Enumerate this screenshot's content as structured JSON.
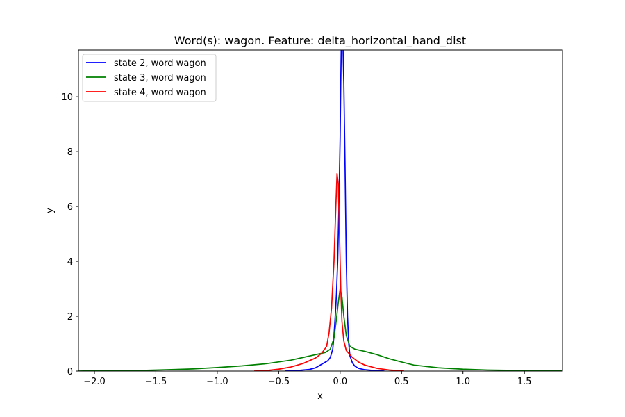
{
  "chart_data": {
    "type": "line",
    "title": "Word(s): wagon. Feature: delta_horizontal_hand_dist",
    "xlabel": "x",
    "ylabel": "y",
    "xlim": [
      -2.13,
      1.81
    ],
    "ylim": [
      0,
      11.7
    ],
    "xticks": [
      -2.0,
      -1.5,
      -1.0,
      -0.5,
      0.0,
      0.5,
      1.0,
      1.5
    ],
    "xtick_labels": [
      "−2.0",
      "−1.5",
      "−1.0",
      "−0.5",
      "0.0",
      "0.5",
      "1.0",
      "1.5"
    ],
    "yticks": [
      0,
      2,
      4,
      6,
      8,
      10
    ],
    "ytick_labels": [
      "0",
      "2",
      "4",
      "6",
      "8",
      "10"
    ],
    "grid": false,
    "legend_placement": "top-left",
    "series": [
      {
        "name": "state 2, word wagon",
        "color": "#0000ff",
        "points": [
          [
            -0.45,
            0.0
          ],
          [
            -0.35,
            0.02
          ],
          [
            -0.25,
            0.06
          ],
          [
            -0.2,
            0.12
          ],
          [
            -0.15,
            0.25
          ],
          [
            -0.1,
            0.38
          ],
          [
            -0.08,
            0.5
          ],
          [
            -0.06,
            0.8
          ],
          [
            -0.05,
            1.3
          ],
          [
            -0.04,
            2.0
          ],
          [
            -0.03,
            2.8
          ],
          [
            -0.02,
            4.0
          ],
          [
            -0.01,
            6.0
          ],
          [
            0.0,
            8.5
          ],
          [
            0.005,
            10.5
          ],
          [
            0.01,
            12.0
          ],
          [
            0.02,
            12.5
          ],
          [
            0.03,
            10.5
          ],
          [
            0.04,
            7.5
          ],
          [
            0.05,
            4.0
          ],
          [
            0.06,
            2.0
          ],
          [
            0.07,
            1.0
          ],
          [
            0.08,
            0.55
          ],
          [
            0.1,
            0.3
          ],
          [
            0.12,
            0.18
          ],
          [
            0.15,
            0.1
          ],
          [
            0.2,
            0.05
          ],
          [
            0.3,
            0.01
          ],
          [
            0.36,
            0.0
          ]
        ]
      },
      {
        "name": "state 3, word wagon",
        "color": "#008000",
        "points": [
          [
            -2.13,
            0.0
          ],
          [
            -2.0,
            0.01
          ],
          [
            -1.8,
            0.015
          ],
          [
            -1.6,
            0.025
          ],
          [
            -1.4,
            0.05
          ],
          [
            -1.2,
            0.08
          ],
          [
            -1.0,
            0.13
          ],
          [
            -0.8,
            0.19
          ],
          [
            -0.6,
            0.27
          ],
          [
            -0.4,
            0.4
          ],
          [
            -0.3,
            0.5
          ],
          [
            -0.2,
            0.6
          ],
          [
            -0.12,
            0.68
          ],
          [
            -0.08,
            0.8
          ],
          [
            -0.05,
            1.2
          ],
          [
            -0.03,
            1.9
          ],
          [
            -0.015,
            2.5
          ],
          [
            0.0,
            3.0
          ],
          [
            0.015,
            2.7
          ],
          [
            0.03,
            2.0
          ],
          [
            0.05,
            1.3
          ],
          [
            0.08,
            0.9
          ],
          [
            0.12,
            0.8
          ],
          [
            0.2,
            0.72
          ],
          [
            0.3,
            0.6
          ],
          [
            0.4,
            0.45
          ],
          [
            0.5,
            0.33
          ],
          [
            0.6,
            0.22
          ],
          [
            0.8,
            0.12
          ],
          [
            1.0,
            0.07
          ],
          [
            1.2,
            0.04
          ],
          [
            1.5,
            0.02
          ],
          [
            1.81,
            0.01
          ]
        ]
      },
      {
        "name": "state 4, word wagon",
        "color": "#ff0000",
        "points": [
          [
            -0.7,
            0.0
          ],
          [
            -0.6,
            0.02
          ],
          [
            -0.5,
            0.07
          ],
          [
            -0.4,
            0.15
          ],
          [
            -0.3,
            0.28
          ],
          [
            -0.2,
            0.48
          ],
          [
            -0.15,
            0.65
          ],
          [
            -0.11,
            0.9
          ],
          [
            -0.09,
            1.4
          ],
          [
            -0.07,
            2.3
          ],
          [
            -0.05,
            4.0
          ],
          [
            -0.035,
            6.0
          ],
          [
            -0.025,
            7.2
          ],
          [
            -0.015,
            6.8
          ],
          [
            -0.005,
            5.0
          ],
          [
            0.005,
            3.0
          ],
          [
            0.015,
            1.8
          ],
          [
            0.03,
            1.1
          ],
          [
            0.05,
            0.75
          ],
          [
            0.1,
            0.5
          ],
          [
            0.15,
            0.33
          ],
          [
            0.2,
            0.22
          ],
          [
            0.3,
            0.1
          ],
          [
            0.4,
            0.04
          ],
          [
            0.5,
            0.01
          ],
          [
            0.52,
            0.0
          ]
        ]
      }
    ]
  }
}
